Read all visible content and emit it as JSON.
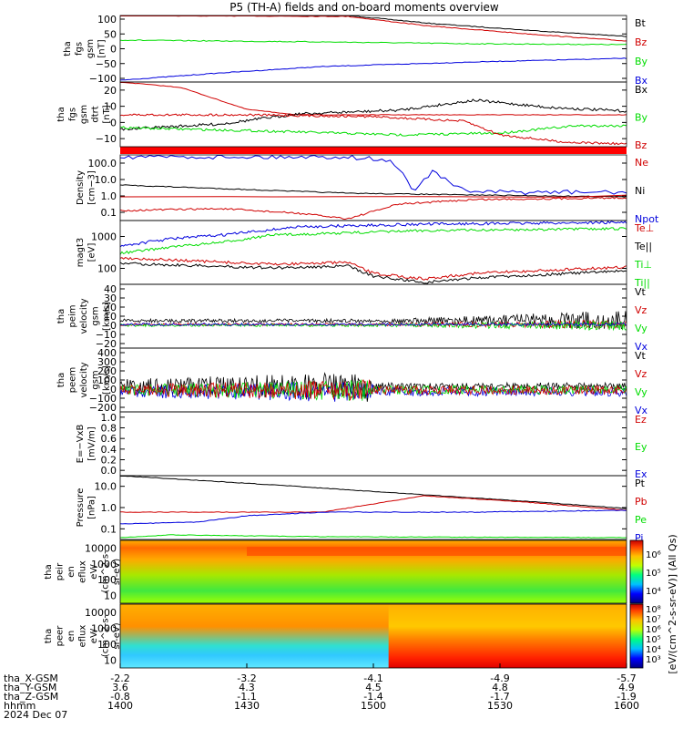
{
  "title": "P5 (TH-A) fields and on-board moments overview",
  "colors": {
    "black": "#000000",
    "red": "#d00000",
    "green": "#00dd00",
    "blue": "#0000dd",
    "thickred": "#ff0000"
  },
  "chart_data": [
    {
      "type": "line",
      "ylabel": [
        "tha",
        "fgs",
        "gsm",
        "[nT]"
      ],
      "yticks": [
        "100",
        "50",
        "0",
        "−50",
        "−100"
      ],
      "ylim": [
        -100,
        100
      ],
      "legend": [
        {
          "name": "Bt",
          "color": "black"
        },
        {
          "name": "Bz",
          "color": "red"
        },
        {
          "name": "By",
          "color": "green"
        },
        {
          "name": "Bx",
          "color": "blue"
        }
      ]
    },
    {
      "type": "line",
      "ylabel": [
        "tha",
        "fgs",
        "gsm",
        "dtrt",
        "[nT]"
      ],
      "yticks": [
        "20",
        "10",
        "0",
        "−10"
      ],
      "ylim": [
        -15,
        20
      ],
      "legend": [
        {
          "name": "Bx",
          "color": "black"
        },
        {
          "name": "By",
          "color": "green"
        },
        {
          "name": "Bz",
          "color": "red"
        }
      ]
    },
    {
      "type": "line",
      "ylabel": [
        "Density",
        "[cm−3]"
      ],
      "yticks": [
        "100.0",
        "10.0",
        "1.0",
        "0.1"
      ],
      "scale": "log",
      "ylim": [
        0.07,
        130
      ],
      "legend": [
        {
          "name": "Ne",
          "color": "red"
        },
        {
          "name": "Ni",
          "color": "black"
        },
        {
          "name": "Npot",
          "color": "blue"
        }
      ]
    },
    {
      "type": "line",
      "ylabel": [
        "magt3",
        "[eV]"
      ],
      "yticks": [
        "1000",
        "100"
      ],
      "scale": "log",
      "ylim": [
        40,
        6000
      ],
      "legend": [
        {
          "name": "Te⊥",
          "color": "red"
        },
        {
          "name": "Te||",
          "color": "black"
        },
        {
          "name": "Ti⊥",
          "color": "green"
        },
        {
          "name": "Ti||",
          "color": "green"
        }
      ]
    },
    {
      "type": "line",
      "ylabel": [
        "tha",
        "peim",
        "velocity",
        "gsm",
        "[km/s]"
      ],
      "yticks": [
        "40",
        "30",
        "20",
        "10",
        "0",
        "−10",
        "−20"
      ],
      "ylim": [
        -25,
        40
      ],
      "legend": [
        {
          "name": "Vt",
          "color": "black"
        },
        {
          "name": "Vz",
          "color": "red"
        },
        {
          "name": "Vy",
          "color": "green"
        },
        {
          "name": "Vx",
          "color": "blue"
        }
      ]
    },
    {
      "type": "line",
      "ylabel": [
        "tha",
        "peem",
        "velocity",
        "gsm",
        "[km/s]"
      ],
      "yticks": [
        "400",
        "300",
        "200",
        "100",
        "0",
        "−100",
        "−200"
      ],
      "ylim": [
        -200,
        450
      ],
      "legend": [
        {
          "name": "Vt",
          "color": "black"
        },
        {
          "name": "Vz",
          "color": "red"
        },
        {
          "name": "Vy",
          "color": "green"
        },
        {
          "name": "Vx",
          "color": "blue"
        }
      ]
    },
    {
      "type": "line",
      "ylabel": [
        "E=−VxB",
        "[mV/m]"
      ],
      "yticks": [
        "1.0",
        "0.8",
        "0.6",
        "0.4",
        "0.2",
        "0.0"
      ],
      "ylim": [
        0,
        1
      ],
      "legend": [
        {
          "name": "Ez",
          "color": "red"
        },
        {
          "name": "Ey",
          "color": "green"
        },
        {
          "name": "Ex",
          "color": "blue"
        }
      ]
    },
    {
      "type": "line",
      "ylabel": [
        "Pressure",
        "[nPa]"
      ],
      "yticks": [
        "10.0",
        "1.0",
        "0.1"
      ],
      "scale": "log",
      "ylim": [
        0.03,
        20
      ],
      "legend": [
        {
          "name": "Pt",
          "color": "black"
        },
        {
          "name": "Pb",
          "color": "red"
        },
        {
          "name": "Pe",
          "color": "green"
        },
        {
          "name": "Pi",
          "color": "blue"
        }
      ]
    },
    {
      "type": "heatmap",
      "ylabel": [
        "tha",
        "peir",
        "en",
        "eflux",
        "eV/",
        "(cm^2-s-",
        "sr-eV)"
      ],
      "yticks": [
        "10000",
        "1000",
        "100",
        "10"
      ]
    },
    {
      "type": "heatmap",
      "ylabel": [
        "tha",
        "peer",
        "en",
        "eflux",
        "eV/",
        "(cm^2-s-",
        "sr-eV)"
      ],
      "yticks": [
        "10000",
        "1000",
        "100",
        "10"
      ]
    }
  ],
  "colorbar": {
    "label": "[eV/(cm^2-s-sr-eV)] (All Qs)",
    "upper_ticks": [
      "10⁶",
      "10⁵",
      "10⁴"
    ],
    "lower_ticks": [
      "10⁸",
      "10⁷",
      "10⁶",
      "10⁵",
      "10⁴",
      "10³"
    ]
  },
  "xaxis": {
    "row_labels": [
      "tha_X-GSM",
      "tha_Y-GSM",
      "tha_Z-GSM",
      "hhmm",
      "2024 Dec 07"
    ],
    "ticks": [
      {
        "x": "-2.2",
        "y": "3.6",
        "z": "-0.8",
        "time": "1400"
      },
      {
        "x": "-3.2",
        "y": "4.3",
        "z": "-1.1",
        "time": "1430"
      },
      {
        "x": "-4.1",
        "y": "4.5",
        "z": "-1.4",
        "time": "1500"
      },
      {
        "x": "-4.9",
        "y": "4.8",
        "z": "-1.7",
        "time": "1530"
      },
      {
        "x": "-5.7",
        "y": "4.9",
        "z": "-1.9",
        "time": "1600"
      }
    ]
  }
}
